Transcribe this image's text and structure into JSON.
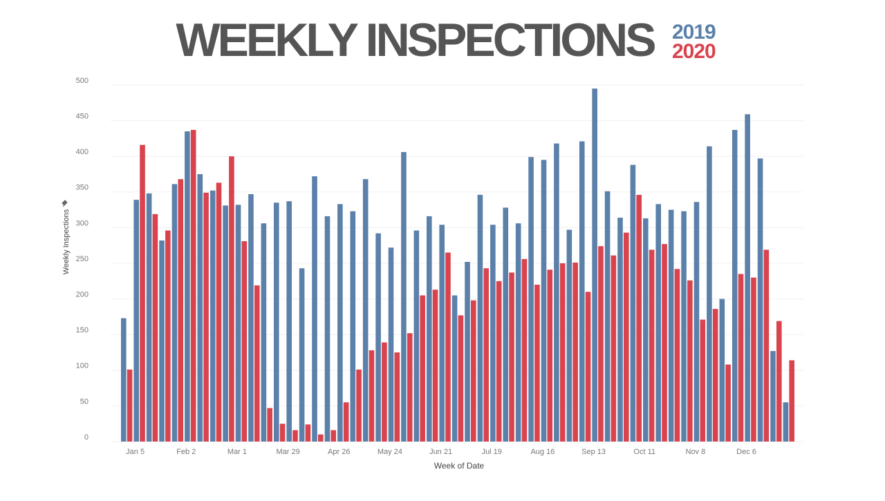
{
  "chart_data": {
    "type": "bar",
    "title": "WEEKLY INSPECTIONS",
    "x_label": "Week of Date",
    "y_label": "Weekly Inspections",
    "categories": [
      null,
      "Jan 5",
      null,
      null,
      null,
      "Feb 2",
      null,
      null,
      null,
      "Mar 1",
      null,
      null,
      null,
      "Mar 29",
      null,
      null,
      null,
      "Apr 26",
      null,
      null,
      null,
      "May 24",
      null,
      null,
      null,
      "Jun 21",
      null,
      null,
      null,
      "Jul 19",
      null,
      null,
      null,
      "Aug 16",
      null,
      null,
      null,
      "Sep 13",
      null,
      null,
      null,
      "Oct 11",
      null,
      null,
      null,
      "Nov 8",
      null,
      null,
      null,
      "Dec 6",
      null,
      null,
      null
    ],
    "series": [
      {
        "name": "2019",
        "color": "#5b80aa",
        "values": [
          173,
          339,
          348,
          282,
          361,
          435,
          375,
          352,
          331,
          332,
          347,
          306,
          335,
          337,
          243,
          372,
          316,
          333,
          323,
          368,
          292,
          272,
          406,
          296,
          316,
          304,
          205,
          252,
          346,
          304,
          328,
          306,
          399,
          395,
          418,
          297,
          421,
          495,
          351,
          314,
          388,
          313,
          333,
          325,
          323,
          336,
          414,
          200,
          437,
          459,
          397,
          127,
          55
        ]
      },
      {
        "name": "2020",
        "color": "#d9434e",
        "values": [
          101,
          416,
          319,
          296,
          368,
          437,
          349,
          363,
          400,
          281,
          219,
          47,
          25,
          16,
          24,
          10,
          16,
          55,
          101,
          128,
          139,
          125,
          152,
          205,
          213,
          265,
          177,
          198,
          243,
          225,
          237,
          256,
          220,
          241,
          250,
          251,
          210,
          274,
          261,
          293,
          346,
          269,
          277,
          242,
          226,
          171,
          186,
          108,
          235,
          230,
          269,
          169,
          114
        ]
      }
    ],
    "ylim": [
      0,
      500
    ],
    "yticks": [
      0,
      50,
      100,
      150,
      200,
      250,
      300,
      350,
      400,
      450,
      500
    ],
    "grid": true
  }
}
